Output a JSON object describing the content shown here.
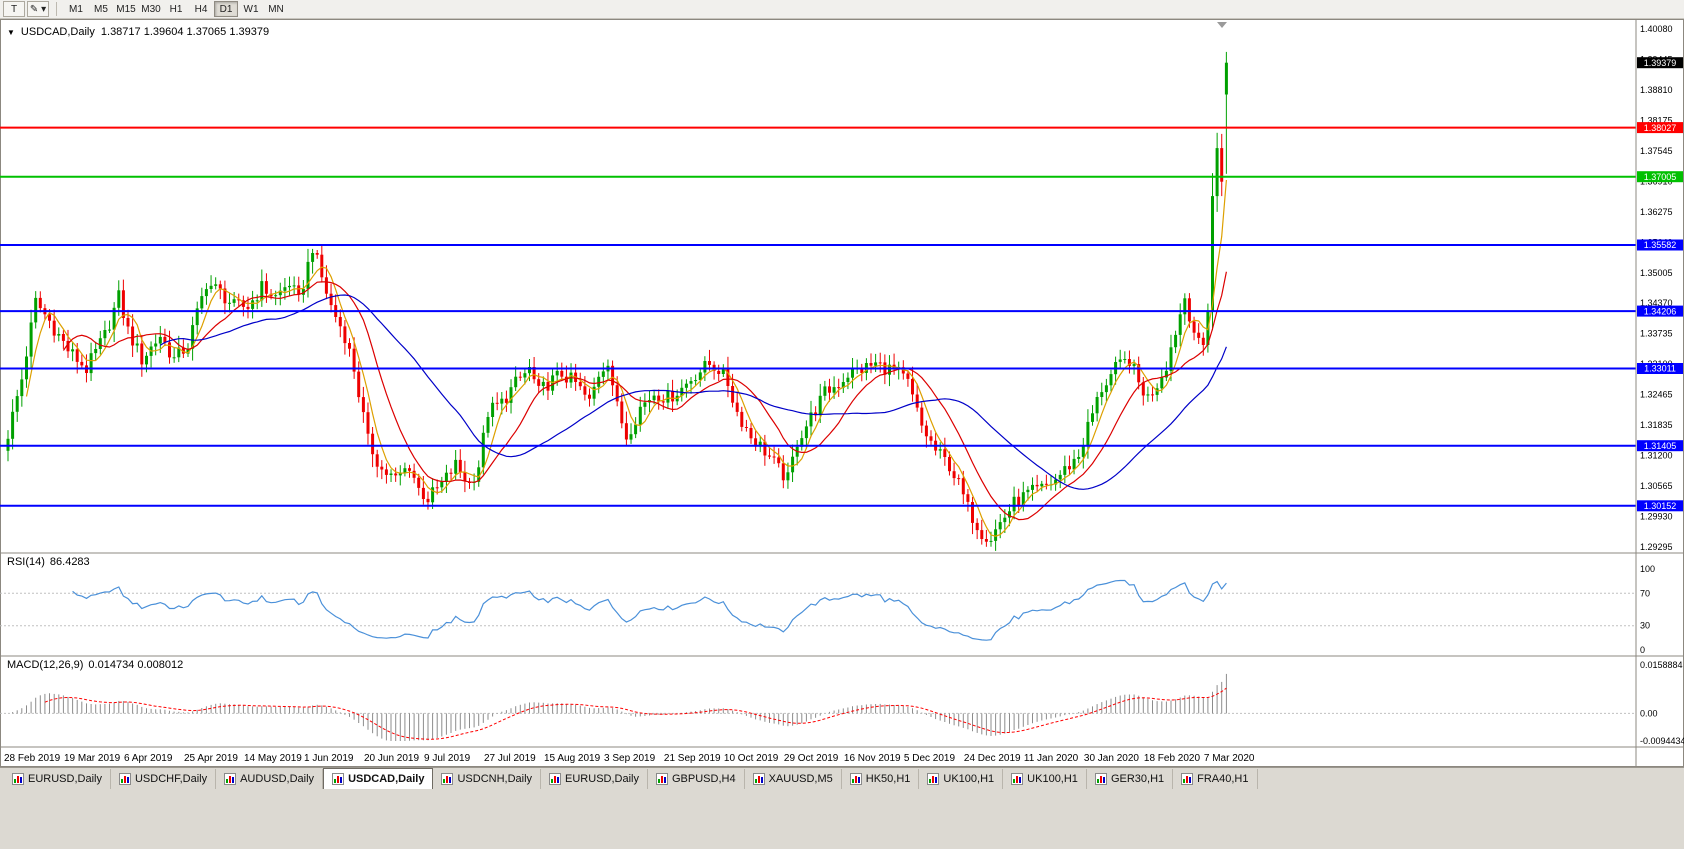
{
  "app": {
    "toolbar": {
      "tools": [
        {
          "name": "text-tool",
          "glyph": "T",
          "caret": ""
        },
        {
          "name": "drawing-tool",
          "glyph": "✎",
          "caret": " ▾"
        }
      ],
      "timeframes": [
        "M1",
        "M5",
        "M15",
        "M30",
        "H1",
        "H4",
        "D1",
        "W1",
        "MN"
      ],
      "active_timeframe": "D1"
    }
  },
  "chart": {
    "header": {
      "expander": "▼",
      "symbol": "USDCAD,Daily",
      "ohlc": "1.38717 1.39604 1.37065 1.39379"
    }
  },
  "indicators": {
    "rsi_label": "RSI(14)",
    "rsi_value": "86.4283",
    "macd_label": "MACD(12,26,9)",
    "macd_values": "0.014734 0.008012"
  },
  "chart_data": {
    "type": "candlestick",
    "symbol": "USDCAD",
    "timeframe": "Daily",
    "current_bar": {
      "open": 1.38717,
      "high": 1.39604,
      "low": 1.37065,
      "close": 1.39379
    },
    "bars_total": 265,
    "close_path_anchors": [
      [
        0,
        1.3165
      ],
      [
        3,
        1.328
      ],
      [
        6,
        1.344
      ],
      [
        9,
        1.34
      ],
      [
        13,
        1.334
      ],
      [
        17,
        1.33
      ],
      [
        21,
        1.337
      ],
      [
        24,
        1.345
      ],
      [
        26,
        1.338
      ],
      [
        29,
        1.332
      ],
      [
        33,
        1.337
      ],
      [
        36,
        1.332
      ],
      [
        39,
        1.335
      ],
      [
        43,
        1.348
      ],
      [
        46,
        1.346
      ],
      [
        49,
        1.343
      ],
      [
        52,
        1.343
      ],
      [
        55,
        1.347
      ],
      [
        58,
        1.345
      ],
      [
        61,
        1.348
      ],
      [
        63,
        1.344
      ],
      [
        66,
        1.3555
      ],
      [
        68,
        1.349
      ],
      [
        70,
        1.343
      ],
      [
        73,
        1.337
      ],
      [
        75,
        1.33
      ],
      [
        78,
        1.315
      ],
      [
        81,
        1.309
      ],
      [
        84,
        1.307
      ],
      [
        87,
        1.31
      ],
      [
        89,
        1.305
      ],
      [
        91,
        1.303
      ],
      [
        94,
        1.306
      ],
      [
        97,
        1.31
      ],
      [
        100,
        1.306
      ],
      [
        102,
        1.31
      ],
      [
        104,
        1.321
      ],
      [
        107,
        1.323
      ],
      [
        110,
        1.327
      ],
      [
        113,
        1.33
      ],
      [
        115,
        1.325
      ],
      [
        117,
        1.327
      ],
      [
        120,
        1.329
      ],
      [
        123,
        1.327
      ],
      [
        126,
        1.323
      ],
      [
        128,
        1.329
      ],
      [
        130,
        1.332
      ],
      [
        132,
        1.322
      ],
      [
        134,
        1.316
      ],
      [
        137,
        1.322
      ],
      [
        140,
        1.325
      ],
      [
        143,
        1.324
      ],
      [
        146,
        1.326
      ],
      [
        149,
        1.329
      ],
      [
        152,
        1.331
      ],
      [
        154,
        1.33
      ],
      [
        156,
        1.327
      ],
      [
        158,
        1.321
      ],
      [
        161,
        1.316
      ],
      [
        164,
        1.313
      ],
      [
        167,
        1.309
      ],
      [
        169,
        1.307
      ],
      [
        171,
        1.315
      ],
      [
        174,
        1.32
      ],
      [
        177,
        1.325
      ],
      [
        180,
        1.327
      ],
      [
        182,
        1.329
      ],
      [
        185,
        1.33
      ],
      [
        188,
        1.331
      ],
      [
        191,
        1.33
      ],
      [
        193,
        1.329
      ],
      [
        195,
        1.327
      ],
      [
        198,
        1.318
      ],
      [
        201,
        1.313
      ],
      [
        204,
        1.31
      ],
      [
        206,
        1.306
      ],
      [
        208,
        1.301
      ],
      [
        211,
        1.296
      ],
      [
        213,
        1.295
      ],
      [
        215,
        1.298
      ],
      [
        218,
        1.302
      ],
      [
        221,
        1.304
      ],
      [
        224,
        1.305
      ],
      [
        227,
        1.307
      ],
      [
        230,
        1.31
      ],
      [
        232,
        1.312
      ],
      [
        234,
        1.318
      ],
      [
        237,
        1.326
      ],
      [
        240,
        1.33
      ],
      [
        243,
        1.332
      ],
      [
        245,
        1.327
      ],
      [
        247,
        1.324
      ],
      [
        249,
        1.327
      ],
      [
        251,
        1.331
      ],
      [
        253,
        1.338
      ],
      [
        255,
        1.345
      ],
      [
        257,
        1.338
      ],
      [
        259,
        1.335
      ],
      [
        260,
        1.342
      ],
      [
        261,
        1.366
      ],
      [
        262,
        1.376
      ],
      [
        263,
        1.369
      ],
      [
        264,
        1.39379
      ]
    ],
    "x_labels": [
      "28 Feb 2019",
      "19 Mar 2019",
      "6 Apr 2019",
      "25 Apr 2019",
      "14 May 2019",
      "1 Jun 2019",
      "20 Jun 2019",
      "9 Jul 2019",
      "27 Jul 2019",
      "15 Aug 2019",
      "3 Sep 2019",
      "21 Sep 2019",
      "10 Oct 2019",
      "29 Oct 2019",
      "16 Nov 2019",
      "5 Dec 2019",
      "24 Dec 2019",
      "11 Jan 2020",
      "30 Jan 2020",
      "18 Feb 2020",
      "7 Mar 2020"
    ],
    "x_label_every": 13,
    "y_axis": {
      "min": 1.29295,
      "max": 1.4008,
      "ticks": [
        "1.40080",
        "1.39445",
        "1.38810",
        "1.38175",
        "1.37545",
        "1.36910",
        "1.36275",
        "1.35640",
        "1.35005",
        "1.34370",
        "1.33735",
        "1.33100",
        "1.32465",
        "1.31835",
        "1.31200",
        "1.30565",
        "1.29930",
        "1.29295"
      ]
    },
    "levels": [
      {
        "value": 1.38027,
        "label": "1.38027",
        "color": "#FF0000"
      },
      {
        "value": 1.37005,
        "label": "1.37005",
        "color": "#00C000"
      },
      {
        "value": 1.35582,
        "label": "1.35582",
        "color": "#0000FF"
      },
      {
        "value": 1.34206,
        "label": "1.34206",
        "color": "#0000FF"
      },
      {
        "value": 1.33011,
        "label": "1.33011",
        "color": "#0000FF"
      },
      {
        "value": 1.31405,
        "label": "1.31405",
        "color": "#0000FF"
      },
      {
        "value": 1.30152,
        "label": "1.30152",
        "color": "#0000FF"
      }
    ],
    "price_badge": {
      "value": 1.39379,
      "label": "1.39379",
      "color": "#000000"
    },
    "candle_colors": {
      "up": "#00A000",
      "down": "#EE0000"
    },
    "moving_averages": [
      {
        "period": 5,
        "color": "#DDA000"
      },
      {
        "period": 13,
        "color": "#DC0000"
      },
      {
        "period": 34,
        "color": "#0000C8"
      }
    ],
    "rsi": {
      "period": 14,
      "value": 86.4283,
      "color": "#4A90D9",
      "upper": 70,
      "lower": 30,
      "axis_labels": [
        "100",
        "70",
        "30",
        "0"
      ]
    },
    "macd": {
      "fast": 12,
      "slow": 26,
      "signal": 9,
      "macd_value": 0.014734,
      "signal_value": 0.008012,
      "histogram_color": "#8C8C8C",
      "signal_color": "#FF0000",
      "axis_max": 0.0158884,
      "axis_min": -0.0094434,
      "axis_labels": [
        "0.0158884",
        "0.00",
        "-0.0094434"
      ]
    }
  },
  "tabs": {
    "items": [
      "EURUSD,Daily",
      "USDCHF,Daily",
      "AUDUSD,Daily",
      "USDCAD,Daily",
      "USDCNH,Daily",
      "EURUSD,Daily",
      "GBPUSD,H4",
      "XAUUSD,M5",
      "HK50,H1",
      "UK100,H1",
      "UK100,H1",
      "GER30,H1",
      "FRA40,H1"
    ],
    "active_index": 3
  }
}
